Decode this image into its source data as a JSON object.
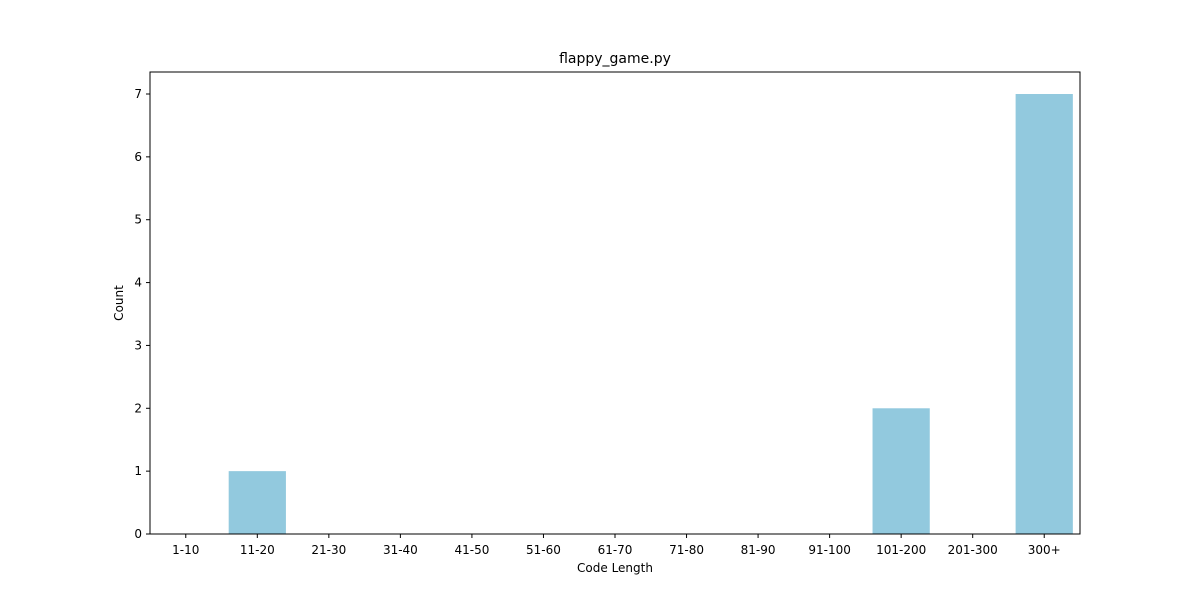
{
  "chart_data": {
    "type": "bar",
    "title": "flappy_game.py",
    "xlabel": "Code Length",
    "ylabel": "Count",
    "categories": [
      "1-10",
      "11-20",
      "21-30",
      "31-40",
      "41-50",
      "51-60",
      "61-70",
      "71-80",
      "81-90",
      "91-100",
      "101-200",
      "201-300",
      "300+"
    ],
    "values": [
      0,
      1,
      0,
      0,
      0,
      0,
      0,
      0,
      0,
      0,
      2,
      0,
      7
    ],
    "ylim": [
      0,
      7.35
    ],
    "yticks": [
      0,
      1,
      2,
      3,
      4,
      5,
      6,
      7
    ],
    "bar_color": "#92c9de",
    "grid": false,
    "legend": "none"
  }
}
